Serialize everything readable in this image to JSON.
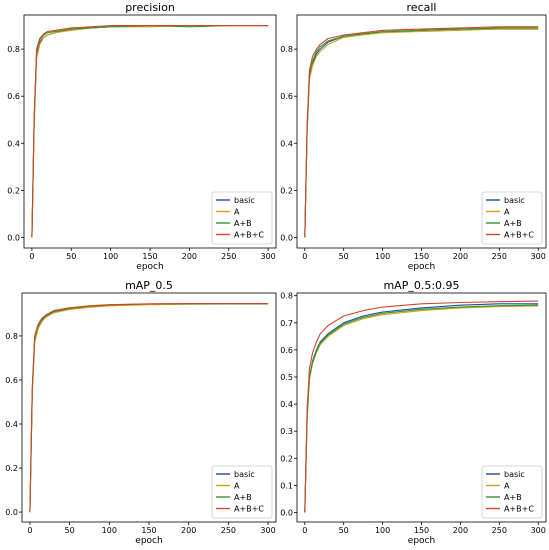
{
  "colors": {
    "basic": "#1f4e9c",
    "A": "#d4a017",
    "A+B": "#2e9a2e",
    "A+B+C": "#d0462a"
  },
  "chart_data": [
    {
      "type": "line",
      "title": "precision",
      "xlabel": "epoch",
      "ylabel": "",
      "xlim": [
        -10,
        310
      ],
      "ylim": [
        -0.045,
        0.945
      ],
      "xticks": [
        0,
        50,
        100,
        150,
        200,
        250,
        300
      ],
      "yticks": [
        0.0,
        0.2,
        0.4,
        0.6,
        0.8
      ],
      "legend": "bottom-right",
      "grid": false,
      "series": [
        {
          "name": "basic",
          "x": [
            0,
            3,
            6,
            10,
            15,
            20,
            30,
            50,
            75,
            100,
            150,
            200,
            250,
            300
          ],
          "y": [
            0.0,
            0.5,
            0.78,
            0.83,
            0.85,
            0.86,
            0.87,
            0.885,
            0.89,
            0.895,
            0.9,
            0.9,
            0.9,
            0.9
          ]
        },
        {
          "name": "A",
          "x": [
            0,
            3,
            6,
            10,
            15,
            20,
            30,
            50,
            75,
            100,
            150,
            200,
            250,
            300
          ],
          "y": [
            0.0,
            0.48,
            0.76,
            0.82,
            0.85,
            0.86,
            0.87,
            0.88,
            0.89,
            0.895,
            0.895,
            0.9,
            0.9,
            0.9
          ]
        },
        {
          "name": "A+B",
          "x": [
            0,
            3,
            6,
            10,
            15,
            20,
            30,
            50,
            75,
            100,
            150,
            200,
            250,
            300
          ],
          "y": [
            0.0,
            0.5,
            0.79,
            0.84,
            0.86,
            0.87,
            0.875,
            0.885,
            0.89,
            0.895,
            0.9,
            0.895,
            0.9,
            0.9
          ]
        },
        {
          "name": "A+B+C",
          "x": [
            0,
            3,
            6,
            10,
            15,
            20,
            30,
            50,
            75,
            100,
            150,
            200,
            250,
            300
          ],
          "y": [
            0.0,
            0.52,
            0.8,
            0.845,
            0.865,
            0.875,
            0.88,
            0.89,
            0.895,
            0.9,
            0.9,
            0.9,
            0.9,
            0.9
          ]
        }
      ]
    },
    {
      "type": "line",
      "title": "recall",
      "xlabel": "epoch",
      "ylabel": "",
      "xlim": [
        -10,
        310
      ],
      "ylim": [
        -0.045,
        0.945
      ],
      "xticks": [
        0,
        50,
        100,
        150,
        200,
        250,
        300
      ],
      "yticks": [
        0.0,
        0.2,
        0.4,
        0.6,
        0.8
      ],
      "legend": "bottom-right",
      "grid": false,
      "series": [
        {
          "name": "basic",
          "x": [
            0,
            3,
            6,
            10,
            15,
            20,
            30,
            50,
            75,
            100,
            150,
            200,
            250,
            300
          ],
          "y": [
            0.0,
            0.45,
            0.68,
            0.74,
            0.78,
            0.8,
            0.83,
            0.855,
            0.865,
            0.87,
            0.88,
            0.885,
            0.885,
            0.885
          ]
        },
        {
          "name": "A",
          "x": [
            0,
            3,
            6,
            10,
            15,
            20,
            30,
            50,
            75,
            100,
            150,
            200,
            250,
            300
          ],
          "y": [
            0.0,
            0.44,
            0.67,
            0.73,
            0.77,
            0.79,
            0.82,
            0.85,
            0.86,
            0.87,
            0.875,
            0.88,
            0.885,
            0.885
          ]
        },
        {
          "name": "A+B",
          "x": [
            0,
            3,
            6,
            10,
            15,
            20,
            30,
            50,
            75,
            100,
            150,
            200,
            250,
            300
          ],
          "y": [
            0.0,
            0.46,
            0.69,
            0.75,
            0.79,
            0.81,
            0.835,
            0.855,
            0.865,
            0.875,
            0.88,
            0.885,
            0.89,
            0.89
          ]
        },
        {
          "name": "A+B+C",
          "x": [
            0,
            3,
            6,
            10,
            15,
            20,
            30,
            50,
            75,
            100,
            150,
            200,
            250,
            300
          ],
          "y": [
            0.0,
            0.48,
            0.71,
            0.77,
            0.8,
            0.82,
            0.845,
            0.86,
            0.87,
            0.88,
            0.885,
            0.89,
            0.895,
            0.895
          ]
        }
      ]
    },
    {
      "type": "line",
      "title": "mAP_0.5",
      "xlabel": "epoch",
      "ylabel": "",
      "xlim": [
        -10,
        310
      ],
      "ylim": [
        -0.045,
        0.995
      ],
      "xticks": [
        0,
        50,
        100,
        150,
        200,
        250,
        300
      ],
      "yticks": [
        0.0,
        0.2,
        0.4,
        0.6,
        0.8
      ],
      "legend": "bottom-right",
      "grid": false,
      "series": [
        {
          "name": "basic",
          "x": [
            0,
            3,
            6,
            10,
            15,
            20,
            30,
            50,
            75,
            100,
            150,
            200,
            250,
            300
          ],
          "y": [
            0.0,
            0.55,
            0.78,
            0.84,
            0.87,
            0.89,
            0.91,
            0.925,
            0.935,
            0.94,
            0.945,
            0.945,
            0.945,
            0.945
          ]
        },
        {
          "name": "A",
          "x": [
            0,
            3,
            6,
            10,
            15,
            20,
            30,
            50,
            75,
            100,
            150,
            200,
            250,
            300
          ],
          "y": [
            0.0,
            0.54,
            0.77,
            0.83,
            0.865,
            0.885,
            0.905,
            0.92,
            0.93,
            0.937,
            0.942,
            0.944,
            0.945,
            0.945
          ]
        },
        {
          "name": "A+B",
          "x": [
            0,
            3,
            6,
            10,
            15,
            20,
            30,
            50,
            75,
            100,
            150,
            200,
            250,
            300
          ],
          "y": [
            0.0,
            0.56,
            0.79,
            0.845,
            0.875,
            0.89,
            0.91,
            0.925,
            0.935,
            0.94,
            0.945,
            0.946,
            0.946,
            0.946
          ]
        },
        {
          "name": "A+B+C",
          "x": [
            0,
            3,
            6,
            10,
            15,
            20,
            30,
            50,
            75,
            100,
            150,
            200,
            250,
            300
          ],
          "y": [
            0.0,
            0.57,
            0.8,
            0.85,
            0.88,
            0.895,
            0.915,
            0.928,
            0.937,
            0.942,
            0.946,
            0.947,
            0.947,
            0.947
          ]
        }
      ]
    },
    {
      "type": "line",
      "title": "mAP_0.5:0.95",
      "xlabel": "epoch",
      "ylabel": "",
      "xlim": [
        -10,
        310
      ],
      "ylim": [
        -0.035,
        0.81
      ],
      "xticks": [
        0,
        50,
        100,
        150,
        200,
        250,
        300
      ],
      "yticks": [
        0.0,
        0.1,
        0.2,
        0.3,
        0.4,
        0.5,
        0.6,
        0.7,
        0.8
      ],
      "legend": "bottom-right",
      "grid": false,
      "series": [
        {
          "name": "basic",
          "x": [
            0,
            3,
            6,
            10,
            15,
            20,
            30,
            50,
            75,
            100,
            150,
            200,
            250,
            300
          ],
          "y": [
            0.0,
            0.35,
            0.5,
            0.56,
            0.6,
            0.63,
            0.66,
            0.7,
            0.725,
            0.74,
            0.755,
            0.765,
            0.77,
            0.77
          ]
        },
        {
          "name": "A",
          "x": [
            0,
            3,
            6,
            10,
            15,
            20,
            30,
            50,
            75,
            100,
            150,
            200,
            250,
            300
          ],
          "y": [
            0.0,
            0.34,
            0.49,
            0.55,
            0.59,
            0.62,
            0.65,
            0.69,
            0.715,
            0.73,
            0.745,
            0.755,
            0.76,
            0.762
          ]
        },
        {
          "name": "A+B",
          "x": [
            0,
            3,
            6,
            10,
            15,
            20,
            30,
            50,
            75,
            100,
            150,
            200,
            250,
            300
          ],
          "y": [
            0.0,
            0.35,
            0.5,
            0.555,
            0.595,
            0.625,
            0.655,
            0.695,
            0.72,
            0.735,
            0.75,
            0.758,
            0.763,
            0.765
          ]
        },
        {
          "name": "A+B+C",
          "x": [
            0,
            3,
            6,
            10,
            15,
            20,
            30,
            50,
            75,
            100,
            150,
            200,
            250,
            300
          ],
          "y": [
            0.0,
            0.38,
            0.53,
            0.59,
            0.63,
            0.66,
            0.69,
            0.725,
            0.745,
            0.758,
            0.77,
            0.775,
            0.778,
            0.78
          ]
        }
      ]
    }
  ]
}
